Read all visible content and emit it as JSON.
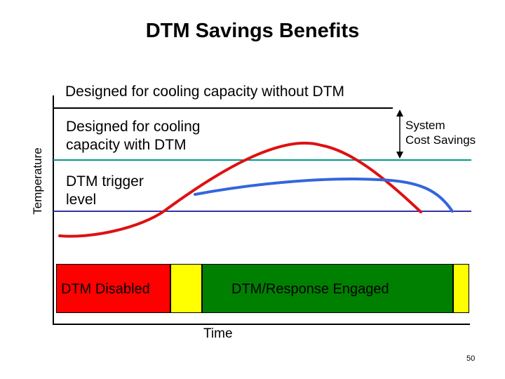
{
  "title": "DTM Savings Benefits",
  "labels": {
    "without_dtm": "Designed for cooling capacity without DTM",
    "with_dtm": "Designed for cooling\n capacity with DTM",
    "trigger_level": "DTM trigger\nlevel",
    "system_cost_savings": "System\nCost Savings"
  },
  "axes": {
    "y_label": "Temperature",
    "x_label": "Time"
  },
  "bars": {
    "disabled": "DTM Disabled",
    "engaged": "DTM/Response Engaged"
  },
  "colors": {
    "without_dtm_line": "#000000",
    "with_dtm_line": "#009a8a",
    "trigger_line": "#3333aa",
    "curve_without_dtm": "#dd1111",
    "curve_with_dtm": "#3366dd",
    "disabled": "#ff0000",
    "transition": "#ffff00",
    "engaged": "#008000"
  },
  "page_number": "50"
}
